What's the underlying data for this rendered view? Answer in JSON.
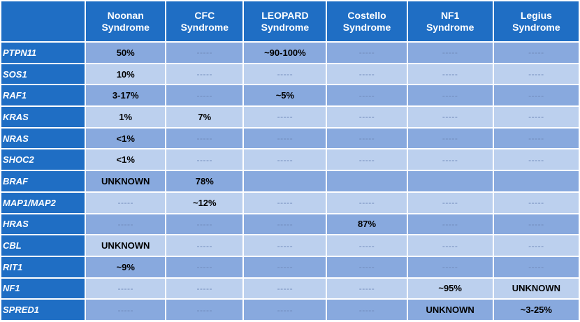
{
  "headers": [
    {
      "line1": "",
      "line2": ""
    },
    {
      "line1": "Noonan",
      "line2": "Syndrome"
    },
    {
      "line1": "CFC",
      "line2": "Syndrome"
    },
    {
      "line1": "LEOPARD",
      "line2": "Syndrome"
    },
    {
      "line1": "Costello",
      "line2": "Syndrome"
    },
    {
      "line1": "NF1",
      "line2": "Syndrome"
    },
    {
      "line1": "Legius",
      "line2": "Syndrome"
    }
  ],
  "rows": [
    {
      "gene": "PTPN11",
      "values": [
        "50%",
        "-----",
        "~90-100%",
        "-----",
        "-----",
        "-----"
      ]
    },
    {
      "gene": "SOS1",
      "values": [
        "10%",
        "-----",
        "-----",
        "-----",
        "-----",
        "-----"
      ]
    },
    {
      "gene": "RAF1",
      "values": [
        "3-17%",
        "-----",
        "~5%",
        "-----",
        "-----",
        "-----"
      ]
    },
    {
      "gene": "KRAS",
      "values": [
        "1%",
        "7%",
        "-----",
        "-----",
        "-----",
        "-----"
      ]
    },
    {
      "gene": "NRAS",
      "values": [
        "<1%",
        "-----",
        "-----",
        "-----",
        "-----",
        "-----"
      ]
    },
    {
      "gene": "SHOC2",
      "values": [
        "<1%",
        "-----",
        "-----",
        "-----",
        "-----",
        "-----"
      ]
    },
    {
      "gene": "BRAF",
      "values": [
        "UNKNOWN",
        "78%",
        "",
        "",
        "",
        ""
      ]
    },
    {
      "gene": "MAP1/MAP2",
      "values": [
        "-----",
        "~12%",
        "-----",
        "-----",
        "-----",
        "-----"
      ]
    },
    {
      "gene": "HRAS",
      "values": [
        "-----",
        "-----",
        "-----",
        "87%",
        "-----",
        "-----"
      ]
    },
    {
      "gene": "CBL",
      "values": [
        "UNKNOWN",
        "-----",
        "-----",
        "-----",
        "-----",
        "-----"
      ]
    },
    {
      "gene": "RIT1",
      "values": [
        "~9%",
        "-----",
        "-----",
        "-----",
        "-----",
        "-----"
      ]
    },
    {
      "gene": "NF1",
      "values": [
        "-----",
        "-----",
        "-----",
        "-----",
        "~95%",
        "UNKNOWN"
      ]
    },
    {
      "gene": "SPRED1",
      "values": [
        "-----",
        "-----",
        "-----",
        "-----",
        "UNKNOWN",
        "~3-25%"
      ]
    }
  ],
  "colors": {
    "header_bg": "#1f6ec4",
    "row_odd_bg": "#88a9de",
    "row_even_bg": "#bcd0ee",
    "dash_text": "#6f89b8"
  }
}
